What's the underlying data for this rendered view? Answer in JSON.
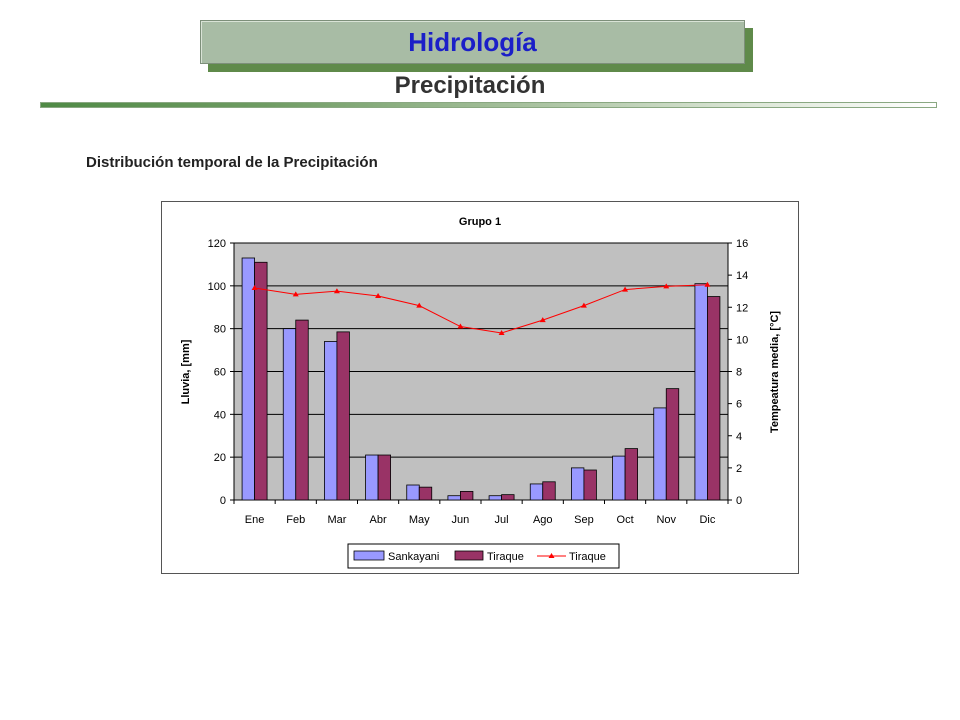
{
  "header": {
    "title": "Hidrología",
    "subtitle": "Precipitación"
  },
  "section": {
    "heading": "Distribución temporal de la Precipitación"
  },
  "colors": {
    "title_text": "#1b1fc8",
    "plot_background": "#c0c0c0",
    "series_sankayani": "#9999ff",
    "series_tiraque_bar": "#993366",
    "series_tiraque_line": "#ff0000"
  },
  "chart_data": {
    "type": "bar",
    "title": "Grupo 1",
    "xlabel": "",
    "ylabel": "Lluvia, [mm]",
    "y2label": "Tempeatura media, [°C]",
    "categories": [
      "Ene",
      "Feb",
      "Mar",
      "Abr",
      "May",
      "Jun",
      "Jul",
      "Ago",
      "Sep",
      "Oct",
      "Nov",
      "Dic"
    ],
    "ylim": [
      0,
      120
    ],
    "yticks": [
      0,
      20,
      40,
      60,
      80,
      100,
      120
    ],
    "y2lim": [
      0,
      16
    ],
    "y2ticks": [
      0,
      2,
      4,
      6,
      8,
      10,
      12,
      14,
      16
    ],
    "grid": true,
    "legend_position": "bottom",
    "series": [
      {
        "name": "Sankayani",
        "type": "bar",
        "axis": "left",
        "values": [
          113,
          80,
          74,
          21,
          7,
          2,
          2,
          7.5,
          15,
          20.5,
          43,
          101
        ]
      },
      {
        "name": "Tiraque",
        "type": "bar",
        "axis": "left",
        "values": [
          111,
          84,
          78.5,
          21,
          6,
          4,
          2.5,
          8.5,
          14,
          24,
          52,
          95
        ]
      },
      {
        "name": "Tiraque",
        "type": "line",
        "axis": "right",
        "values": [
          13.2,
          12.8,
          13.0,
          12.7,
          12.1,
          10.8,
          10.4,
          11.2,
          12.1,
          13.1,
          13.3,
          13.4
        ]
      }
    ]
  }
}
